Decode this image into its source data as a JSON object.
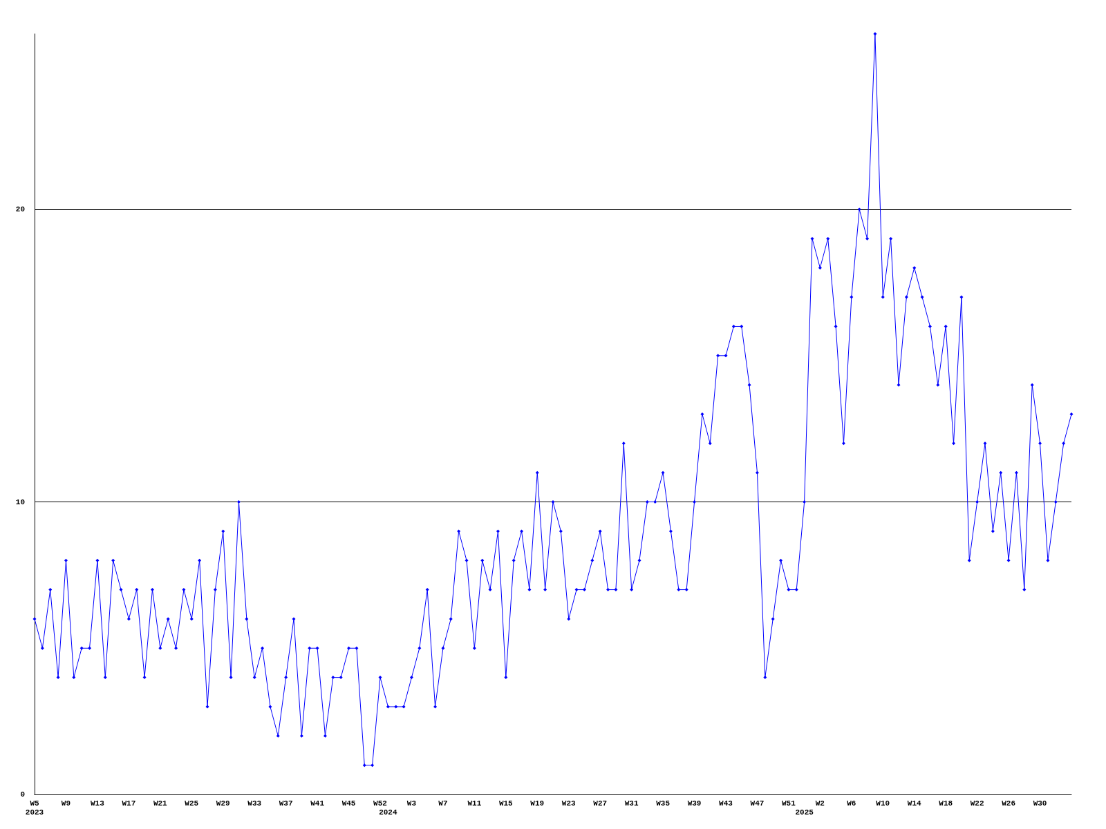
{
  "chart_data": {
    "type": "line",
    "categories": [
      "W5\n2023",
      null,
      null,
      null,
      "W9",
      null,
      null,
      null,
      "W13",
      null,
      null,
      null,
      "W17",
      null,
      null,
      null,
      "W21",
      null,
      null,
      null,
      "W25",
      null,
      null,
      null,
      "W29",
      null,
      null,
      null,
      "W33",
      null,
      null,
      null,
      "W37",
      null,
      null,
      null,
      "W41",
      null,
      null,
      null,
      "W45",
      null,
      null,
      null,
      "W52",
      "\n2024",
      null,
      null,
      "W3",
      null,
      null,
      null,
      "W7",
      null,
      null,
      null,
      "W11",
      null,
      null,
      null,
      "W15",
      null,
      null,
      null,
      "W19",
      null,
      null,
      null,
      "W23",
      null,
      null,
      null,
      "W27",
      null,
      null,
      null,
      "W31",
      null,
      null,
      null,
      "W35",
      null,
      null,
      null,
      "W39",
      null,
      null,
      null,
      "W43",
      null,
      null,
      null,
      "W47",
      null,
      null,
      null,
      "W51",
      null,
      "\n2025",
      null,
      "W2",
      null,
      null,
      null,
      "W6",
      null,
      null,
      null,
      "W10",
      null,
      null,
      null,
      "W14",
      null,
      null,
      null,
      "W18",
      null,
      null,
      null,
      "W22",
      null,
      null,
      null,
      "W26",
      null,
      null,
      null,
      "W30",
      null,
      null,
      null,
      null
    ],
    "series": [
      {
        "color": "#0000ff",
        "values": [
          6,
          5,
          7,
          4,
          8,
          4,
          5,
          5,
          8,
          4,
          8,
          7,
          6,
          7,
          4,
          7,
          5,
          6,
          5,
          7,
          6,
          8,
          3,
          7,
          9,
          4,
          10,
          6,
          4,
          5,
          3,
          2,
          4,
          6,
          2,
          5,
          5,
          2,
          4,
          4,
          5,
          5,
          1,
          1,
          4,
          3,
          3,
          3,
          4,
          5,
          7,
          3,
          5,
          6,
          9,
          8,
          5,
          8,
          7,
          9,
          4,
          8,
          9,
          7,
          11,
          7,
          10,
          9,
          6,
          7,
          7,
          8,
          9,
          7,
          7,
          12,
          7,
          8,
          10,
          10,
          11,
          9,
          7,
          7,
          10,
          13,
          12,
          15,
          15,
          16,
          16,
          14,
          11,
          4,
          6,
          8,
          7,
          7,
          10,
          19,
          18,
          19,
          16,
          12,
          17,
          20,
          19,
          26,
          17,
          19,
          14,
          17,
          18,
          17,
          16,
          14,
          16,
          12,
          17,
          8,
          10,
          12,
          9,
          11,
          8,
          11,
          7,
          14,
          12,
          8,
          10,
          12,
          13
        ]
      }
    ],
    "ylim": [
      0,
      26
    ],
    "yticks": [
      0,
      10,
      20
    ],
    "grid": "y",
    "marker": "diamond",
    "line_style": "solid"
  }
}
